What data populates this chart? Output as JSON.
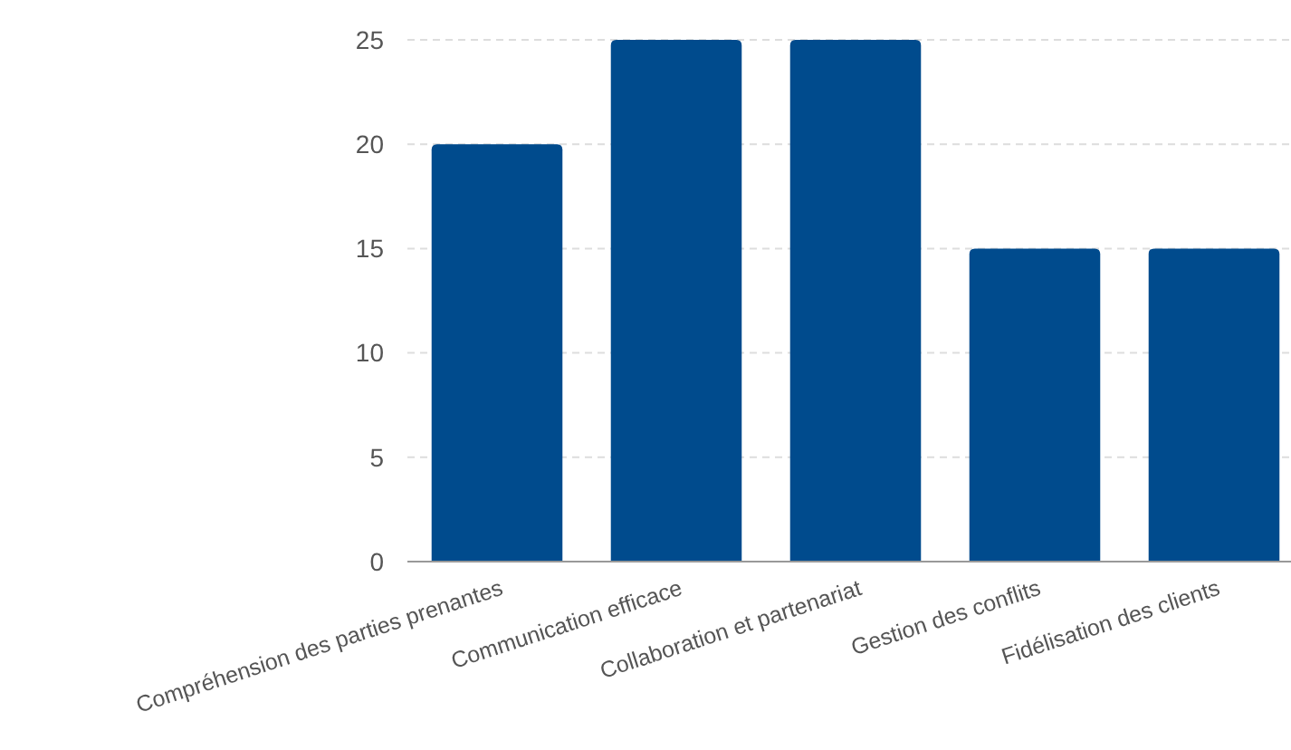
{
  "chart_data": {
    "type": "bar",
    "categories": [
      "Compréhension des parties prenantes",
      "Communication efficace",
      "Collaboration et partenariat",
      "Gestion des conflits",
      "Fidélisation des clients"
    ],
    "values": [
      20,
      25,
      25,
      15,
      15
    ],
    "color": "#004b8d",
    "ylim": [
      0,
      25
    ],
    "yticks": [
      0,
      5,
      10,
      15,
      20,
      25
    ],
    "grid": "y"
  }
}
